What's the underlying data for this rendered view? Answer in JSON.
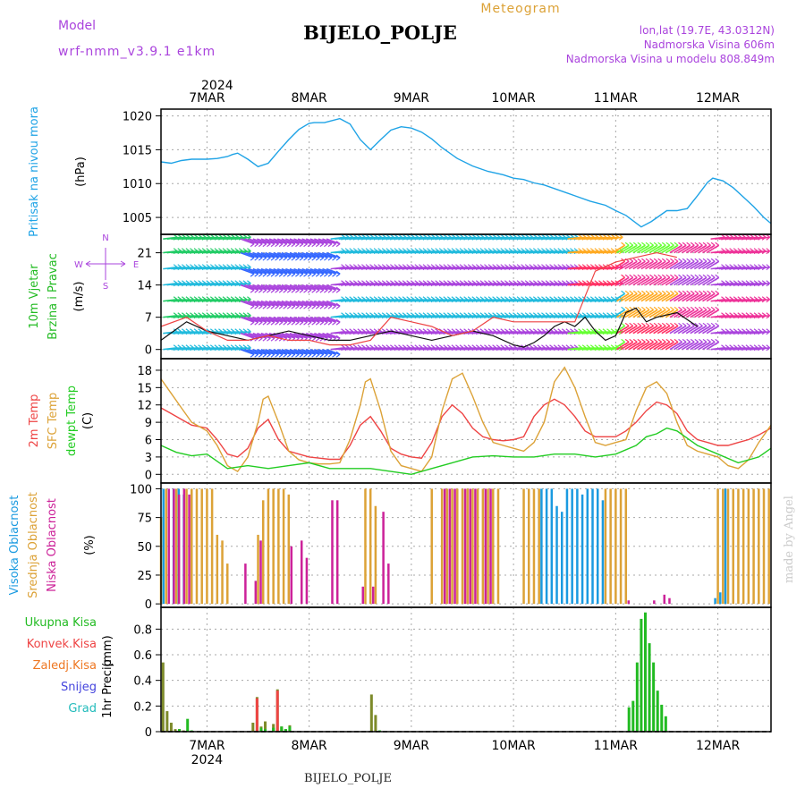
{
  "header": {
    "model_label": "Model",
    "model_name": "wrf-nmm_v3.9.1 e1km",
    "station": "BIJELO_POLJE",
    "product": "Meteogram",
    "lonlat": "lon,lat (19.7E, 43.0312N)",
    "elevation": "Nadmorska Visina 606m",
    "model_elevation": "Nadmorska Visina u modelu 808.849m",
    "footer_station": "BIJELO_POLJE",
    "watermark": "made by Angel"
  },
  "time_axis": {
    "year": "2024",
    "dates": [
      "7MAR",
      "8MAR",
      "9MAR",
      "10MAR",
      "11MAR",
      "12MAR"
    ],
    "x_start": 6.55,
    "x_end": 12.52
  },
  "colors": {
    "pressure": "#1fa3e6",
    "temp2m": "#ee4444",
    "sfc": "#dca237",
    "dewpt": "#22cc22",
    "high_cloud": "#1a9ae0",
    "mid_cloud": "#dca237",
    "low_cloud": "#cc2299",
    "precip_total": "#22bb22",
    "precip_conv": "#ee4444",
    "precip_freezing": "#ee7722",
    "snow": "#4444dd",
    "hail": "#22bbbb",
    "wind_label": "#22bb22",
    "wind_dir": "#aa44dd"
  },
  "chart_data": [
    {
      "type": "line",
      "panel": "pressure",
      "ylabel_1": "Pritisak na nivou mora",
      "unit": "(hPa)",
      "yticks": [
        1005,
        1010,
        1015,
        1020
      ],
      "ylim": [
        1002.5,
        1021
      ],
      "grid": true,
      "series": [
        {
          "color_key": "pressure",
          "x": [
            6.55,
            6.65,
            6.75,
            6.85,
            7.0,
            7.1,
            7.2,
            7.25,
            7.3,
            7.4,
            7.5,
            7.6,
            7.7,
            7.8,
            7.9,
            8.0,
            8.05,
            8.15,
            8.2,
            8.3,
            8.4,
            8.5,
            8.6,
            8.7,
            8.8,
            8.9,
            9.0,
            9.1,
            9.2,
            9.3,
            9.45,
            9.6,
            9.75,
            9.9,
            10.0,
            10.1,
            10.2,
            10.3,
            10.45,
            10.6,
            10.75,
            10.9,
            11.0,
            11.1,
            11.25,
            11.35,
            11.5,
            11.6,
            11.7,
            11.8,
            11.9,
            11.95,
            12.05,
            12.15,
            12.25,
            12.35,
            12.45,
            12.52
          ],
          "y": [
            1013.2,
            1013.0,
            1013.4,
            1013.6,
            1013.6,
            1013.7,
            1014.0,
            1014.3,
            1014.5,
            1013.6,
            1012.5,
            1013.0,
            1014.8,
            1016.5,
            1018.0,
            1018.9,
            1019.0,
            1019.0,
            1019.2,
            1019.6,
            1018.8,
            1016.5,
            1015.0,
            1016.5,
            1017.9,
            1018.4,
            1018.2,
            1017.6,
            1016.6,
            1015.3,
            1013.7,
            1012.6,
            1011.8,
            1011.3,
            1010.8,
            1010.6,
            1010.1,
            1009.8,
            1009.0,
            1008.2,
            1007.4,
            1006.8,
            1006.0,
            1005.3,
            1003.6,
            1004.4,
            1006.0,
            1006.0,
            1006.3,
            1008.2,
            1010.2,
            1010.8,
            1010.4,
            1009.4,
            1008.0,
            1006.6,
            1005.0,
            1004.1
          ]
        }
      ]
    },
    {
      "type": "line",
      "panel": "wind",
      "ylabel_1": "10m Vjetar",
      "ylabel_2": "Brzina i Pravac",
      "unit": "(m/s)",
      "compass_n": "N",
      "compass_s": "S",
      "compass_e": "E",
      "compass_w": "W",
      "yticks": [
        0,
        7,
        14,
        21
      ],
      "ylim": [
        -2,
        25
      ],
      "grid": true,
      "series": [
        {
          "name_key": "speed",
          "color": "#111111",
          "x": [
            6.55,
            6.8,
            7.0,
            7.2,
            7.4,
            7.6,
            7.8,
            8.0,
            8.2,
            8.4,
            8.6,
            8.8,
            9.0,
            9.2,
            9.4,
            9.6,
            9.8,
            10.0,
            10.1,
            10.2,
            10.3,
            10.4,
            10.5,
            10.6,
            10.7,
            10.8,
            10.9,
            11.0,
            11.1,
            11.2,
            11.3,
            11.4,
            11.6,
            11.8
          ],
          "y": [
            2,
            6,
            4,
            3,
            2,
            3,
            4,
            3,
            2,
            2,
            3,
            4,
            3,
            2,
            3,
            4,
            3,
            1,
            0.5,
            1.5,
            3,
            5,
            6,
            5,
            7,
            4,
            2,
            3,
            8,
            9,
            6,
            7,
            8,
            5
          ]
        },
        {
          "name_key": "gust",
          "color": "#ee4444",
          "x": [
            6.55,
            6.8,
            7.0,
            7.2,
            7.4,
            7.6,
            7.8,
            8.0,
            8.2,
            8.4,
            8.6,
            8.8,
            9.0,
            9.2,
            9.4,
            9.6,
            9.8,
            10.0,
            10.2,
            10.4,
            10.6,
            10.8,
            11.0,
            11.2,
            11.4,
            11.6
          ],
          "y": [
            5,
            7,
            4,
            2,
            2,
            3,
            2,
            2,
            1,
            1,
            2,
            7,
            6,
            5,
            3,
            4,
            7,
            6,
            6,
            6,
            6,
            17,
            19,
            20,
            21,
            20
          ]
        }
      ]
    },
    {
      "type": "line",
      "panel": "temperature",
      "ylabel_1": "2m Temp",
      "ylabel_2": "SFC Temp",
      "ylabel_3": "dewpt Temp",
      "unit": "(C)",
      "yticks": [
        0,
        3,
        6,
        9,
        12,
        15,
        18
      ],
      "ylim": [
        -1.5,
        20
      ],
      "grid": true,
      "series": [
        {
          "color_key": "temp2m",
          "x": [
            6.55,
            6.65,
            6.75,
            6.85,
            7.0,
            7.1,
            7.2,
            7.3,
            7.4,
            7.5,
            7.6,
            7.7,
            7.8,
            7.9,
            8.0,
            8.1,
            8.2,
            8.3,
            8.4,
            8.5,
            8.6,
            8.7,
            8.8,
            8.9,
            9.0,
            9.1,
            9.2,
            9.3,
            9.4,
            9.5,
            9.6,
            9.7,
            9.8,
            9.9,
            10.0,
            10.1,
            10.2,
            10.3,
            10.4,
            10.5,
            10.6,
            10.7,
            10.8,
            10.9,
            11.0,
            11.1,
            11.2,
            11.3,
            11.4,
            11.5,
            11.6,
            11.7,
            11.8,
            11.9,
            12.0,
            12.1,
            12.2,
            12.3,
            12.4,
            12.52
          ],
          "y": [
            11.5,
            10.5,
            9.5,
            8.5,
            8.0,
            6.0,
            3.5,
            3.0,
            4.5,
            8.0,
            9.5,
            6.0,
            4.0,
            3.5,
            3.0,
            2.8,
            2.6,
            2.6,
            5.0,
            8.5,
            10.0,
            7.5,
            4.5,
            3.5,
            3.0,
            2.8,
            5.5,
            10.0,
            12.0,
            10.5,
            8.0,
            6.5,
            6.0,
            5.8,
            6.0,
            6.5,
            10.0,
            12.0,
            13.0,
            12.0,
            10.0,
            7.5,
            6.5,
            6.5,
            6.5,
            7.5,
            9.0,
            11.0,
            12.5,
            12.0,
            10.5,
            7.5,
            6.0,
            5.5,
            5.0,
            5.0,
            5.5,
            6.0,
            6.8,
            8.0
          ]
        },
        {
          "color_key": "sfc",
          "x": [
            6.55,
            6.65,
            6.75,
            6.85,
            7.0,
            7.1,
            7.2,
            7.3,
            7.4,
            7.5,
            7.55,
            7.6,
            7.7,
            7.8,
            7.9,
            8.0,
            8.1,
            8.2,
            8.3,
            8.4,
            8.5,
            8.55,
            8.6,
            8.7,
            8.8,
            8.9,
            9.0,
            9.1,
            9.2,
            9.3,
            9.4,
            9.5,
            9.6,
            9.7,
            9.8,
            9.9,
            10.0,
            10.1,
            10.2,
            10.3,
            10.4,
            10.5,
            10.6,
            10.7,
            10.8,
            10.9,
            11.0,
            11.1,
            11.2,
            11.3,
            11.4,
            11.5,
            11.6,
            11.7,
            11.8,
            11.9,
            12.0,
            12.1,
            12.2,
            12.3,
            12.4,
            12.52
          ],
          "y": [
            16.5,
            14.0,
            11.5,
            9.0,
            7.5,
            5.0,
            1.5,
            0.5,
            3.0,
            9.0,
            13.0,
            13.5,
            9.0,
            4.0,
            2.5,
            2.0,
            1.8,
            1.8,
            2.0,
            6.0,
            12.0,
            16.0,
            16.5,
            11.0,
            4.0,
            1.5,
            1.0,
            0.5,
            3.0,
            11.0,
            16.5,
            17.5,
            13.5,
            9.0,
            5.5,
            5.0,
            4.5,
            4.0,
            5.5,
            9.0,
            16.0,
            18.5,
            15.0,
            10.0,
            5.5,
            5.0,
            5.5,
            6.0,
            11.0,
            15.0,
            16.0,
            14.0,
            9.0,
            5.0,
            4.0,
            3.5,
            3.0,
            1.5,
            1.0,
            2.5,
            5.5,
            8.5
          ]
        },
        {
          "color_key": "dewpt",
          "x": [
            6.55,
            6.7,
            6.85,
            7.0,
            7.2,
            7.4,
            7.6,
            7.8,
            8.0,
            8.2,
            8.4,
            8.6,
            8.8,
            9.0,
            9.2,
            9.4,
            9.6,
            9.8,
            10.0,
            10.2,
            10.4,
            10.6,
            10.8,
            11.0,
            11.2,
            11.3,
            11.4,
            11.5,
            11.6,
            11.8,
            12.0,
            12.2,
            12.4,
            12.52
          ],
          "y": [
            5.0,
            3.8,
            3.2,
            3.5,
            1.0,
            1.5,
            1.0,
            1.5,
            2.0,
            1.0,
            1.0,
            1.0,
            0.5,
            0.0,
            1.0,
            2.0,
            3.0,
            3.2,
            3.0,
            3.0,
            3.5,
            3.5,
            3.0,
            3.5,
            5.0,
            6.5,
            7.0,
            8.0,
            7.5,
            5.0,
            3.5,
            2.0,
            3.0,
            4.5
          ]
        }
      ]
    },
    {
      "type": "bar",
      "panel": "clouds",
      "ylabel_1": "Visoka Oblacnost",
      "ylabel_2": "Srednja Oblacnost",
      "ylabel_3": "Niska Oblacnost",
      "unit": "(%)",
      "yticks": [
        0,
        25,
        50,
        75,
        100
      ],
      "ylim": [
        -3,
        105
      ],
      "grid": true,
      "series": [
        {
          "name_key": "high",
          "color_key": "high_cloud",
          "x": [
            6.6,
            6.7,
            6.75,
            6.8,
            10.3,
            10.35,
            10.4,
            10.45,
            10.5,
            10.55,
            10.6,
            10.65,
            10.7,
            10.75,
            10.8,
            10.85,
            10.9,
            12.0,
            12.05,
            12.1
          ],
          "y": [
            100,
            100,
            100,
            95,
            100,
            100,
            100,
            85,
            80,
            100,
            100,
            100,
            95,
            100,
            100,
            100,
            90,
            5,
            10,
            100
          ]
        },
        {
          "name_key": "mid",
          "color_key": "mid_cloud",
          "x": [
            6.55,
            6.6,
            6.7,
            6.8,
            6.85,
            6.9,
            6.95,
            7.0,
            7.05,
            7.1,
            7.15,
            7.2,
            7.5,
            7.55,
            7.6,
            7.65,
            7.7,
            7.75,
            7.8,
            8.55,
            8.6,
            8.65,
            9.2,
            9.3,
            9.35,
            9.4,
            9.45,
            9.5,
            9.55,
            9.6,
            9.65,
            9.7,
            9.75,
            9.8,
            9.85,
            10.1,
            10.15,
            10.2,
            10.25,
            10.9,
            10.95,
            11.0,
            11.05,
            11.1,
            12.0,
            12.05,
            12.1,
            12.15,
            12.2,
            12.25,
            12.3,
            12.35,
            12.4,
            12.45,
            12.5
          ],
          "y": [
            75,
            100,
            100,
            100,
            100,
            100,
            100,
            100,
            100,
            60,
            55,
            35,
            60,
            90,
            100,
            100,
            100,
            100,
            95,
            100,
            100,
            85,
            100,
            100,
            100,
            100,
            100,
            100,
            100,
            100,
            100,
            100,
            100,
            100,
            100,
            100,
            100,
            100,
            100,
            100,
            100,
            100,
            100,
            100,
            100,
            100,
            100,
            100,
            100,
            100,
            100,
            100,
            100,
            100,
            100
          ]
        },
        {
          "name_key": "low",
          "color_key": "low_cloud",
          "x": [
            6.6,
            6.65,
            6.7,
            6.75,
            6.8,
            7.35,
            7.45,
            7.5,
            7.8,
            7.9,
            7.95,
            8.2,
            8.25,
            8.5,
            8.6,
            8.7,
            8.75,
            9.3,
            9.35,
            9.4,
            9.5,
            9.55,
            9.6,
            9.7,
            9.75,
            11.1,
            11.35,
            11.45,
            11.5
          ],
          "y": [
            100,
            100,
            95,
            100,
            95,
            35,
            20,
            55,
            50,
            55,
            40,
            90,
            90,
            15,
            15,
            80,
            35,
            100,
            100,
            100,
            100,
            100,
            100,
            100,
            100,
            3,
            3,
            8,
            5
          ]
        }
      ]
    },
    {
      "type": "bar",
      "panel": "precip",
      "legend": [
        "Ukupna Kisa",
        "Konvek.Kisa",
        "Zaledj.Kisa",
        "Snijeg",
        "Grad"
      ],
      "ylabel_1": "1hr Precip",
      "unit": "(mm)",
      "yticks": [
        0,
        0.2,
        0.4,
        0.6,
        0.8
      ],
      "ytick_labels": [
        "0",
        "0.2",
        "0.4",
        "0.6",
        "0.8"
      ],
      "ylim": [
        0,
        0.97
      ],
      "grid": true,
      "series": [
        {
          "name_key": "total",
          "color": "#7d8a2a",
          "x": [
            6.57,
            6.61,
            6.65,
            6.69,
            6.73,
            6.77,
            7.45,
            7.49,
            7.53,
            7.57,
            7.65,
            7.69,
            7.73,
            7.77,
            7.81,
            8.61,
            8.65
          ],
          "y": [
            0.54,
            0.16,
            0.07,
            0.02,
            0.02,
            0.01,
            0.07,
            0.27,
            0.04,
            0.08,
            0.06,
            0.33,
            0.04,
            0.02,
            0.05,
            0.29,
            0.13
          ]
        },
        {
          "name_key": "conv",
          "color_key": "precip_conv",
          "x": [
            7.49,
            7.69
          ],
          "y": [
            0.26,
            0.32
          ]
        },
        {
          "name_key": "rain",
          "color_key": "precip_total",
          "x": [
            6.73,
            6.81,
            6.85,
            7.53,
            7.57,
            7.65,
            7.73,
            7.77,
            7.81,
            8.69,
            11.13,
            11.17,
            11.21,
            11.25,
            11.29,
            11.33,
            11.37,
            11.41,
            11.45,
            11.49
          ],
          "y": [
            0.02,
            0.1,
            0.01,
            0.03,
            0.02,
            0.03,
            0.04,
            0.02,
            0.04,
            0.01,
            0.19,
            0.24,
            0.54,
            0.88,
            0.93,
            0.69,
            0.54,
            0.32,
            0.21,
            0.12
          ]
        }
      ]
    }
  ]
}
